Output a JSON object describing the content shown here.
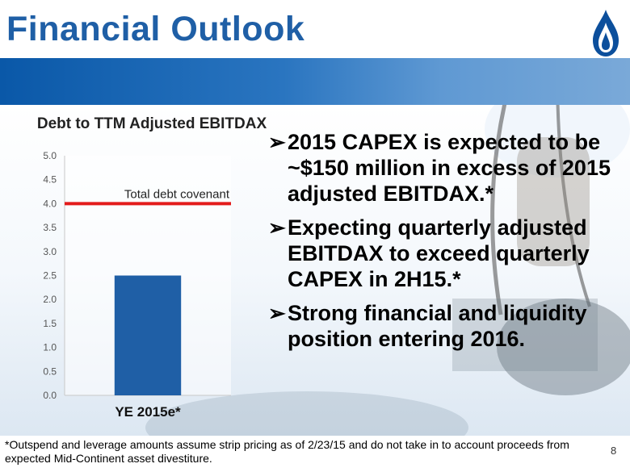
{
  "title": "Financial Outlook",
  "page_number": "8",
  "chart_data": {
    "type": "bar",
    "title": "Debt to TTM Adjusted EBITDAX",
    "categories": [
      "YE 2015e*"
    ],
    "values": [
      2.5
    ],
    "ylim": [
      0,
      5.0
    ],
    "yticks": [
      "0.0",
      "0.5",
      "1.0",
      "1.5",
      "2.0",
      "2.5",
      "3.0",
      "3.5",
      "4.0",
      "4.5",
      "5.0"
    ],
    "reference_line": {
      "label": "Total debt covenant",
      "value": 4.0,
      "color": "#e31b1b"
    },
    "bar_color": "#1f5fa6",
    "grid": false,
    "legend": "none"
  },
  "bullets": [
    "2015 CAPEX is expected to be ~$150 million in excess of 2015 adjusted EBITDAX.*",
    "Expecting quarterly adjusted EBITDAX to exceed quarterly CAPEX in 2H15.*",
    "Strong financial and liquidity position entering 2016."
  ],
  "bullet_icon": "arrow-bullet-icon",
  "footnote": "*Outspend and leverage amounts assume strip pricing as of 2/23/15 and do not take in to account proceeds from expected Mid-Continent asset divestiture.",
  "colors": {
    "title": "#1f5fa6",
    "band": "#1a68b4",
    "covenant": "#e31b1b",
    "bar": "#1f5fa6"
  },
  "logo_icon": "flame-drop-icon"
}
